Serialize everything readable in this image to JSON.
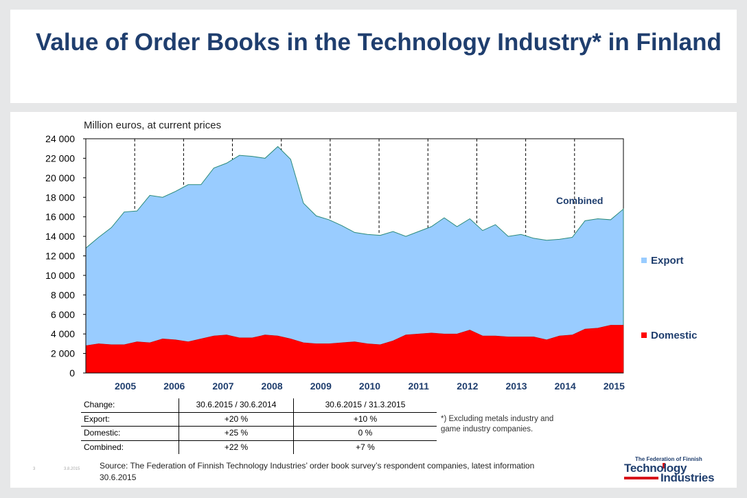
{
  "slide": {
    "title": "Value of Order Books in the Technology Industry* in Finland",
    "slide_number": "3",
    "date": "3.8.2015"
  },
  "chart_data": {
    "type": "area",
    "title": "",
    "ylabel": "Million euros, at current prices",
    "xlabel": "",
    "ylim": [
      0,
      24000
    ],
    "yticks": [
      0,
      2000,
      4000,
      6000,
      8000,
      10000,
      12000,
      14000,
      16000,
      18000,
      20000,
      22000,
      24000
    ],
    "ytick_labels": [
      "0",
      "2 000",
      "4 000",
      "6 000",
      "8 000",
      "10 000",
      "12 000",
      "14 000",
      "16 000",
      "18 000",
      "20 000",
      "22 000",
      "24 000"
    ],
    "years": [
      "2005",
      "2006",
      "2007",
      "2008",
      "2009",
      "2010",
      "2011",
      "2012",
      "2013",
      "2014",
      "2015"
    ],
    "periods_per_year": 4,
    "grid": "vertical dashed at year boundaries",
    "legend_position": "right",
    "annotation": "Combined",
    "series": [
      {
        "name": "Export",
        "color": "#99ccff",
        "stacked_total": true,
        "values": [
          12800,
          13900,
          14900,
          16500,
          16600,
          18200,
          18000,
          18600,
          19300,
          19300,
          21000,
          21500,
          22300,
          22200,
          22000,
          23200,
          21900,
          17400,
          16100,
          15700,
          15100,
          14400,
          14200,
          14100,
          14500,
          14000,
          14500,
          15000,
          15900,
          15000,
          15800,
          14600,
          15200,
          14000,
          14200,
          13800,
          13600,
          13700,
          13900,
          15600,
          15800,
          15700,
          16800
        ]
      },
      {
        "name": "Domestic",
        "color": "#ff0000",
        "values": [
          2800,
          3000,
          2900,
          2900,
          3200,
          3100,
          3500,
          3400,
          3200,
          3500,
          3800,
          3900,
          3600,
          3600,
          3900,
          3800,
          3500,
          3100,
          3000,
          3000,
          3100,
          3200,
          3000,
          2900,
          3300,
          3900,
          4000,
          4100,
          4000,
          4000,
          4400,
          3800,
          3800,
          3700,
          3700,
          3700,
          3400,
          3800,
          3900,
          4500,
          4600,
          4900,
          4900
        ]
      }
    ]
  },
  "change_table": {
    "header": [
      "Change:",
      "30.6.2015 / 30.6.2014",
      "30.6.2015 / 31.3.2015"
    ],
    "rows": [
      [
        "Export:",
        "+20 %",
        "+10 %"
      ],
      [
        "Domestic:",
        "+25 %",
        "0 %"
      ],
      [
        "Combined:",
        "+22 %",
        "+7 %"
      ]
    ]
  },
  "footnote": "*) Excluding metals industry and game industry companies.",
  "source": "Source: The Federation of Finnish Technology Industries’ order book survey’s respondent companies, latest information 30.6.2015",
  "logo": {
    "line1": "The Federation of Finnish",
    "line2": "Technology",
    "line3": "Industries"
  }
}
